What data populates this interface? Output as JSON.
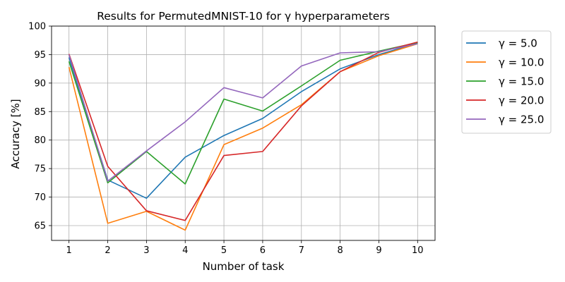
{
  "chart_data": {
    "type": "line",
    "title": "Results for PermutedMNIST-10 for γ hyperparameters",
    "xlabel": "Number of task",
    "ylabel": "Accuracy [%]",
    "x": [
      1,
      2,
      3,
      4,
      5,
      6,
      7,
      8,
      9,
      10
    ],
    "xticks": [
      "1",
      "2",
      "3",
      "4",
      "5",
      "6",
      "7",
      "8",
      "9",
      "10"
    ],
    "yticks": [
      "65",
      "70",
      "75",
      "80",
      "85",
      "90",
      "95",
      "100"
    ],
    "xlim": [
      0.55,
      10.45
    ],
    "ylim": [
      62.4,
      100
    ],
    "grid": true,
    "legend": {
      "placement": "outside-right-top"
    },
    "series": [
      {
        "name": "γ = 5.0",
        "color": "#1f77b4",
        "values": [
          94.5,
          73.0,
          69.8,
          77.0,
          80.8,
          83.8,
          88.5,
          92.5,
          95.0,
          97.0
        ]
      },
      {
        "name": "γ = 10.0",
        "color": "#ff7f0e",
        "values": [
          92.8,
          65.4,
          67.5,
          64.2,
          79.2,
          82.1,
          86.2,
          92.0,
          94.8,
          96.9
        ]
      },
      {
        "name": "γ = 15.0",
        "color": "#2ca02c",
        "values": [
          93.8,
          72.5,
          78.0,
          72.3,
          87.2,
          85.1,
          89.5,
          94.0,
          95.6,
          97.1
        ]
      },
      {
        "name": "γ = 20.0",
        "color": "#d62728",
        "values": [
          95.1,
          75.4,
          67.6,
          65.9,
          77.3,
          78.0,
          86.0,
          92.0,
          95.4,
          97.2
        ]
      },
      {
        "name": "γ = 25.0",
        "color": "#9467bd",
        "values": [
          95.0,
          72.8,
          78.1,
          83.2,
          89.2,
          87.4,
          93.0,
          95.3,
          95.5,
          96.9
        ]
      }
    ]
  }
}
